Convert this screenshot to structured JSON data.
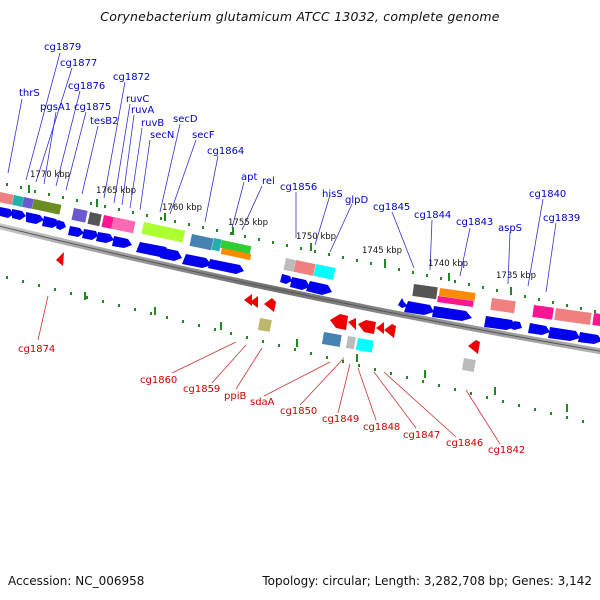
{
  "title": "Corynebacterium glutamicum ATCC 13032, complete genome",
  "footer": {
    "accession": "Accession: NC_006958",
    "topology": "Topology: circular; Length: 3,282,708 bp; Genes: 3,142"
  },
  "kbp_labels": [
    "1770 kbp",
    "1765 kbp",
    "1760 kbp",
    "1755 kbp",
    "1750 kbp",
    "1745 kbp",
    "1740 kbp",
    "1735 kbp"
  ],
  "forward_genes": [
    "thrS",
    "cg1879",
    "cg1877",
    "pgsA1",
    "cg1876",
    "cg1875",
    "tesB2",
    "cg1872",
    "ruvC",
    "ruvA",
    "ruvB",
    "secN",
    "secD",
    "secF",
    "cg1864",
    "apt",
    "rel",
    "cg1856",
    "hisS",
    "glpD",
    "cg1845",
    "cg1844",
    "cg1843",
    "aspS",
    "cg1840",
    "cg1839"
  ],
  "reverse_genes": [
    "cg1874",
    "cg1860",
    "cg1859",
    "ppiB",
    "sdaA",
    "cg1850",
    "cg1849",
    "cg1848",
    "cg1847",
    "cg1846",
    "cg1842"
  ],
  "colors": {
    "forward_label": "#0000cc",
    "reverse_label": "#cc0000",
    "forward_arrow": "#0000ee",
    "reverse_arrow": "#ee0000",
    "backbone": "#808080",
    "tick": "#228822"
  }
}
